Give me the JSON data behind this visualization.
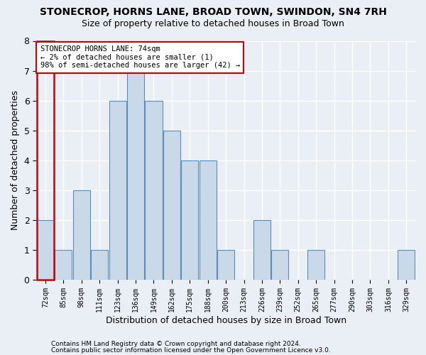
{
  "title": "STONECROP, HORNS LANE, BROAD TOWN, SWINDON, SN4 7RH",
  "subtitle": "Size of property relative to detached houses in Broad Town",
  "xlabel": "Distribution of detached houses by size in Broad Town",
  "ylabel": "Number of detached properties",
  "categories": [
    "72sqm",
    "85sqm",
    "98sqm",
    "111sqm",
    "123sqm",
    "136sqm",
    "149sqm",
    "162sqm",
    "175sqm",
    "188sqm",
    "200sqm",
    "213sqm",
    "226sqm",
    "239sqm",
    "252sqm",
    "265sqm",
    "277sqm",
    "290sqm",
    "303sqm",
    "316sqm",
    "329sqm"
  ],
  "values": [
    2,
    1,
    3,
    1,
    6,
    7,
    6,
    5,
    4,
    4,
    1,
    0,
    2,
    1,
    0,
    1,
    0,
    0,
    0,
    0,
    1
  ],
  "bar_color": "#c9d9e8",
  "bar_edge_color": "#5b8db8",
  "highlight_index": 0,
  "highlight_edge_color": "#cc0000",
  "annotation_box_text": "STONECROP HORNS LANE: 74sqm\n← 2% of detached houses are smaller (1)\n98% of semi-detached houses are larger (42) →",
  "annotation_box_edge_color": "#cc0000",
  "ylim": [
    0,
    8
  ],
  "yticks": [
    0,
    1,
    2,
    3,
    4,
    5,
    6,
    7,
    8
  ],
  "footer_line1": "Contains HM Land Registry data © Crown copyright and database right 2024.",
  "footer_line2": "Contains public sector information licensed under the Open Government Licence v3.0.",
  "background_color": "#eaeff5",
  "plot_bg_color": "#eaeff5",
  "grid_color": "#ffffff",
  "title_fontsize": 10,
  "subtitle_fontsize": 9
}
